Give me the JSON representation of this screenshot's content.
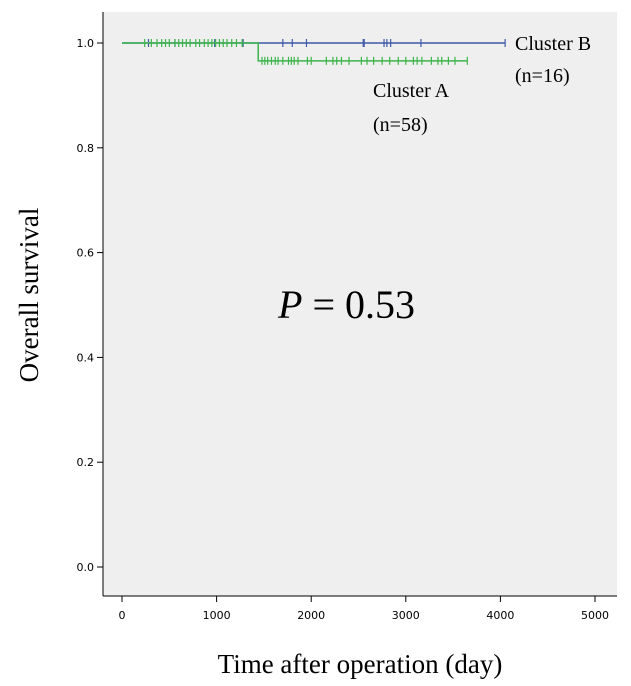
{
  "chart_data": {
    "type": "line",
    "subtype": "kaplan-meier",
    "xlabel": "Time after operation (day)",
    "ylabel": "Overall survival",
    "xlim": [
      0,
      5000
    ],
    "ylim": [
      0.0,
      1.0
    ],
    "x_ticks": [
      0,
      1000,
      2000,
      3000,
      4000,
      5000
    ],
    "y_ticks": [
      0.0,
      0.2,
      0.4,
      0.6,
      0.8,
      1.0
    ],
    "y_tick_labels": [
      "0.0",
      "0.2",
      "0.4",
      "0.6",
      "0.8",
      "1.0"
    ],
    "grid": false,
    "background": "#efefef",
    "annotation": {
      "italic": "P",
      "rest": " = 0.53"
    },
    "series": [
      {
        "label_line1": "Cluster B",
        "label_line2": "(n=16)",
        "color": "#3f5aa8",
        "steps": [
          [
            0,
            1.0
          ],
          [
            4050,
            1.0
          ]
        ],
        "censored": [
          280,
          560,
          980,
          1280,
          1700,
          1800,
          1950,
          2550,
          2560,
          2770,
          2800,
          2840,
          3160,
          4050
        ]
      },
      {
        "label_line1": "Cluster A",
        "label_line2": "(n=58)",
        "color": "#3cb54a",
        "steps": [
          [
            0,
            1.0
          ],
          [
            1440,
            1.0
          ],
          [
            1440,
            0.966
          ],
          [
            3650,
            0.966
          ]
        ],
        "censored": [
          240,
          310,
          370,
          420,
          460,
          500,
          560,
          600,
          640,
          680,
          720,
          780,
          820,
          870,
          910,
          950,
          990,
          1030,
          1070,
          1110,
          1160,
          1210,
          1270,
          1480,
          1510,
          1540,
          1580,
          1620,
          1650,
          1700,
          1760,
          1790,
          1820,
          1860,
          1960,
          2000,
          2160,
          2230,
          2270,
          2320,
          2400,
          2530,
          2590,
          2660,
          2750,
          2830,
          2920,
          3000,
          3080,
          3120,
          3170,
          3270,
          3340,
          3380,
          3450,
          3520,
          3650
        ]
      }
    ]
  }
}
